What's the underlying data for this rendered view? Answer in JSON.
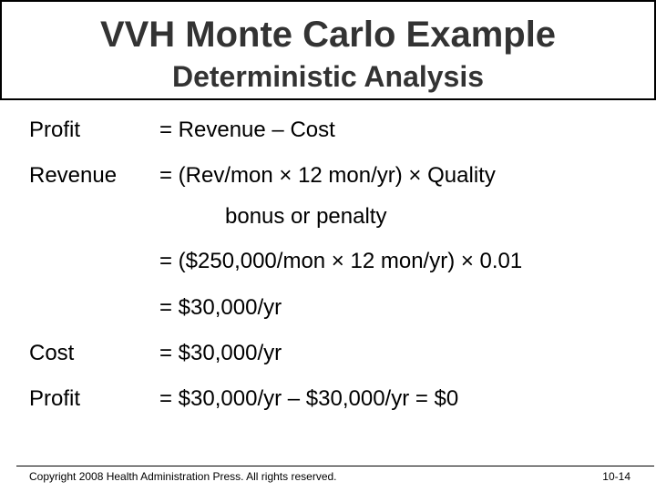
{
  "title": "VVH Monte Carlo Example",
  "subtitle": "Deterministic Analysis",
  "lines": {
    "profit_label": "Profit",
    "profit_eq": "= Revenue – Cost",
    "revenue_label": "Revenue",
    "revenue_eq": "= (Rev/mon × 12 mon/yr) × Quality",
    "revenue_cont": "bonus or penalty",
    "revenue_calc": "= ($250,000/mon × 12 mon/yr) × 0.01",
    "revenue_result": "= $30,000/yr",
    "cost_label": "Cost",
    "cost_eq": "= $30,000/yr",
    "profit2_label": "Profit",
    "profit2_eq": "= $30,000/yr – $30,000/yr = $0"
  },
  "footer": {
    "copyright": "Copyright 2008 Health Administration Press. All rights reserved.",
    "page": "10-14"
  }
}
